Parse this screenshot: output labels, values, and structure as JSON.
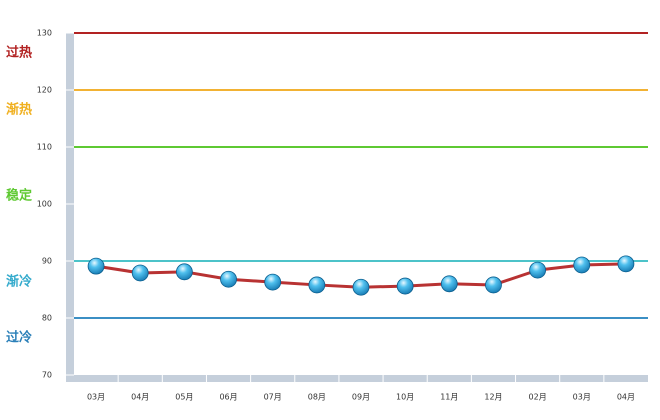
{
  "chart_data": {
    "type": "line",
    "categories": [
      "03月",
      "04月",
      "05月",
      "06月",
      "07月",
      "08月",
      "09月",
      "10月",
      "11月",
      "12月",
      "02月",
      "03月",
      "04月"
    ],
    "series": [
      {
        "color": "#b83232",
        "marker_color": "#2a9fd6",
        "values": [
          89.1,
          87.9,
          88.1,
          86.8,
          86.3,
          85.8,
          85.4,
          85.6,
          86.0,
          85.8,
          88.4,
          89.3,
          89.5
        ]
      }
    ],
    "ylim": [
      70,
      130
    ],
    "yticks": [
      70,
      80,
      90,
      100,
      110,
      120,
      130
    ],
    "thresholds": [
      {
        "value": 130,
        "color": "#b22222"
      },
      {
        "value": 120,
        "color": "#f2b233"
      },
      {
        "value": 110,
        "color": "#5ec932"
      },
      {
        "value": 90,
        "color": "#4cc3c9"
      },
      {
        "value": 80,
        "color": "#3b8fc4"
      }
    ],
    "zones": [
      {
        "label": "过热",
        "color": "#b22222"
      },
      {
        "label": "渐热",
        "color": "#f0b020"
      },
      {
        "label": "稳定",
        "color": "#5ec932"
      },
      {
        "label": "渐冷",
        "color": "#33aacc"
      },
      {
        "label": "过冷",
        "color": "#2a7fb8"
      }
    ]
  }
}
